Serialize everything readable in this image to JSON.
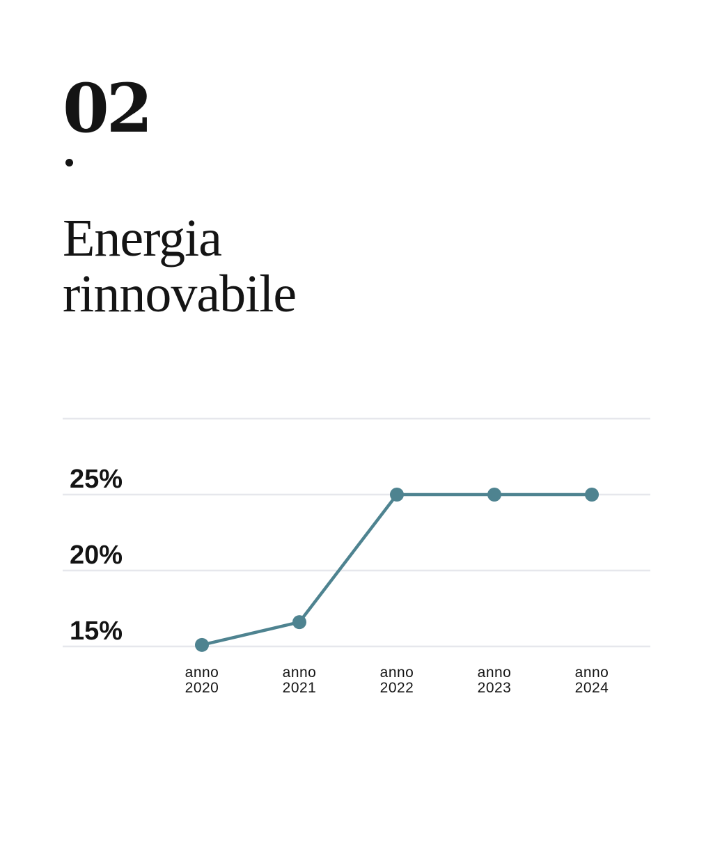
{
  "header": {
    "section_number": "02",
    "title_line1": "Energia",
    "title_line2": "rinnovabile"
  },
  "chart_data": {
    "type": "line",
    "categories": [
      "anno 2020",
      "anno 2021",
      "anno 2022",
      "anno 2023",
      "anno 2024"
    ],
    "category_lines": [
      [
        "anno",
        "2020"
      ],
      [
        "anno",
        "2021"
      ],
      [
        "anno",
        "2022"
      ],
      [
        "anno",
        "2023"
      ],
      [
        "anno",
        "2024"
      ]
    ],
    "series": [
      {
        "values": [
          15.1,
          16.6,
          25,
          25,
          25
        ],
        "color": "#4e8390"
      }
    ],
    "y_ticks": [
      15,
      20,
      25
    ],
    "y_tick_labels": [
      "15%",
      "20%",
      "25%"
    ],
    "ylim": [
      15,
      30
    ],
    "grid": true,
    "gridline_color": "#e6e7ec",
    "title": "",
    "xlabel": "",
    "ylabel": ""
  }
}
